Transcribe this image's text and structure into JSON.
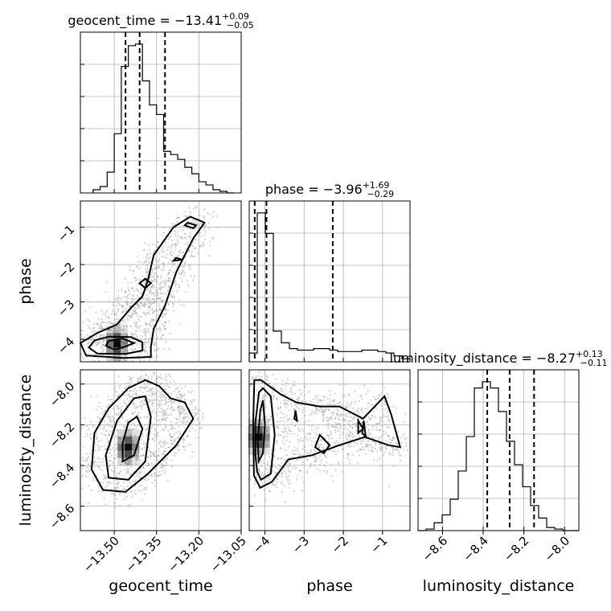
{
  "chart_data": {
    "type": "corner",
    "parameters": [
      "geocent_time",
      "phase",
      "luminosity_distance"
    ],
    "diagonal": [
      {
        "parameter": "geocent_time",
        "title": {
          "prefix": "geocent_time = ",
          "value": "−13.41",
          "plus": "+0.09",
          "minus": "−0.05"
        },
        "range": [
          -13.62,
          -13.05
        ],
        "ticks": [
          -13.5,
          -13.35,
          -13.2,
          -13.05
        ],
        "tick_labels": [
          "−13.50",
          "−13.35",
          "−13.20",
          "−13.05"
        ],
        "quantiles": [
          -13.46,
          -13.41,
          -13.32
        ],
        "bins": {
          "start": -13.575,
          "width": 0.025,
          "counts": [
            0.02,
            0.04,
            0.13,
            0.37,
            0.79,
            0.92,
            0.93,
            0.7,
            0.55,
            0.49,
            0.26,
            0.24,
            0.21,
            0.16,
            0.12,
            0.07,
            0.05,
            0.02,
            0.01,
            0.0
          ]
        }
      },
      {
        "parameter": "phase",
        "title": {
          "prefix": "phase = ",
          "value": "−3.96",
          "plus": "+1.69",
          "minus": "−0.29"
        },
        "range": [
          -4.4,
          -0.3
        ],
        "ticks": [
          -4,
          -3,
          -2,
          -1
        ],
        "tick_labels": [
          "−4",
          "−3",
          "−2",
          "−1"
        ],
        "quantiles": [
          -4.26,
          -3.96,
          -2.27
        ],
        "bins": {
          "start": -4.4,
          "width": 0.205,
          "counts": [
            0.06,
            1.02,
            0.88,
            0.21,
            0.13,
            0.09,
            0.08,
            0.08,
            0.09,
            0.09,
            0.08,
            0.07,
            0.07,
            0.07,
            0.08,
            0.08,
            0.07,
            0.06,
            0.04,
            0.02
          ]
        }
      },
      {
        "parameter": "luminosity_distance",
        "title": {
          "prefix": "luminosity_distance = ",
          "value": "−8.27",
          "plus": "+0.13",
          "minus": "−0.11"
        },
        "range": [
          -8.72,
          -7.93
        ],
        "ticks": [
          -8.6,
          -8.4,
          -8.2,
          -8.0
        ],
        "tick_labels": [
          "−8.6",
          "−8.4",
          "−8.2",
          "−8.0"
        ],
        "quantiles": [
          -8.38,
          -8.27,
          -8.15
        ],
        "bins": {
          "start": -8.72,
          "width": 0.0395,
          "counts": [
            0.0,
            0.01,
            0.05,
            0.1,
            0.2,
            0.38,
            0.6,
            0.91,
            0.95,
            0.91,
            0.76,
            0.57,
            0.42,
            0.28,
            0.16,
            0.08,
            0.02,
            0.01,
            0.0,
            0.0
          ]
        }
      }
    ],
    "pairs": [
      {
        "x": "geocent_time",
        "y": "phase",
        "yrange": [
          -4.6,
          -0.3
        ],
        "yticks": [
          -4,
          -3,
          -2,
          -1
        ],
        "ytick_labels": [
          "−4",
          "−3",
          "−2",
          "−1"
        ],
        "density_peak": [
          -13.49,
          -4.12
        ],
        "contours": [
          [
            [
              -13.5,
              -4.27
            ],
            [
              -13.47,
              -4.22
            ],
            [
              -13.43,
              -4.1
            ],
            [
              -13.47,
              -3.98
            ],
            [
              -13.52,
              -4.04
            ],
            [
              -13.53,
              -4.17
            ]
          ],
          [
            [
              -13.56,
              -4.38
            ],
            [
              -13.46,
              -4.39
            ],
            [
              -13.4,
              -4.3
            ],
            [
              -13.4,
              -4.08
            ],
            [
              -13.44,
              -3.94
            ],
            [
              -13.52,
              -3.93
            ],
            [
              -13.57,
              -4.03
            ],
            [
              -13.59,
              -4.22
            ]
          ],
          [
            [
              -13.6,
              -4.43
            ],
            [
              -13.47,
              -4.5
            ],
            [
              -13.37,
              -4.47
            ],
            [
              -13.37,
              -4.2
            ],
            [
              -13.36,
              -3.72
            ],
            [
              -13.32,
              -3.1
            ],
            [
              -13.28,
              -2.2
            ],
            [
              -13.22,
              -1.3
            ],
            [
              -13.18,
              -0.88
            ],
            [
              -13.23,
              -0.72
            ],
            [
              -13.29,
              -1.0
            ],
            [
              -13.36,
              -1.75
            ],
            [
              -13.38,
              -2.4
            ],
            [
              -13.4,
              -2.85
            ],
            [
              -13.44,
              -3.15
            ],
            [
              -13.49,
              -3.6
            ],
            [
              -13.56,
              -3.83
            ],
            [
              -13.62,
              -4.1
            ]
          ],
          [
            [
              -13.39,
              -2.38
            ],
            [
              -13.37,
              -2.5
            ],
            [
              -13.39,
              -2.63
            ],
            [
              -13.41,
              -2.5
            ]
          ],
          [
            [
              -13.24,
              -0.88
            ],
            [
              -13.21,
              -0.95
            ],
            [
              -13.22,
              -1.03
            ],
            [
              -13.25,
              -0.95
            ]
          ],
          [
            [
              -13.28,
              -1.82
            ],
            [
              -13.26,
              -1.87
            ],
            [
              -13.29,
              -1.9
            ]
          ]
        ]
      },
      {
        "x": "geocent_time",
        "y": "luminosity_distance",
        "yrange": [
          -8.72,
          -7.93
        ],
        "yticks": [
          -8.6,
          -8.4,
          -8.2,
          -8.0
        ],
        "ytick_labels": [
          "−8.6",
          "−8.4",
          "−8.2",
          "−8.0"
        ],
        "density_peak": [
          -13.45,
          -8.31
        ],
        "contours": [
          [
            [
              -13.47,
              -8.38
            ],
            [
              -13.43,
              -8.35
            ],
            [
              -13.4,
              -8.22
            ],
            [
              -13.42,
              -8.16
            ],
            [
              -13.45,
              -8.19
            ],
            [
              -13.47,
              -8.29
            ]
          ],
          [
            [
              -13.52,
              -8.46
            ],
            [
              -13.45,
              -8.47
            ],
            [
              -13.39,
              -8.38
            ],
            [
              -13.37,
              -8.16
            ],
            [
              -13.39,
              -8.06
            ],
            [
              -13.43,
              -8.07
            ],
            [
              -13.49,
              -8.18
            ],
            [
              -13.53,
              -8.35
            ]
          ],
          [
            [
              -13.58,
              -8.42
            ],
            [
              -13.54,
              -8.52
            ],
            [
              -13.46,
              -8.53
            ],
            [
              -13.38,
              -8.44
            ],
            [
              -13.33,
              -8.37
            ],
            [
              -13.28,
              -8.3
            ],
            [
              -13.22,
              -8.17
            ],
            [
              -13.25,
              -8.09
            ],
            [
              -13.3,
              -8.07
            ],
            [
              -13.34,
              -8.01
            ],
            [
              -13.39,
              -7.98
            ],
            [
              -13.45,
              -8.02
            ],
            [
              -13.52,
              -8.12
            ],
            [
              -13.57,
              -8.24
            ]
          ]
        ]
      },
      {
        "x": "phase",
        "y": "luminosity_distance",
        "yrange": [
          -8.72,
          -7.93
        ],
        "yticks": [
          -8.6,
          -8.4,
          -8.2,
          -8.0
        ],
        "ytick_labels": [
          "−8.6",
          "−8.4",
          "−8.2",
          "−8.0"
        ],
        "density_peak": [
          -4.15,
          -8.26
        ],
        "contours": [
          [
            [
              -4.16,
              -8.38
            ],
            [
              -4.05,
              -8.34
            ],
            [
              -4.0,
              -8.2
            ],
            [
              -4.05,
              -8.08
            ],
            [
              -4.12,
              -8.13
            ],
            [
              -4.18,
              -8.28
            ]
          ],
          [
            [
              -4.2,
              -8.43
            ],
            [
              -4.1,
              -8.47
            ],
            [
              -3.85,
              -8.44
            ],
            [
              -3.75,
              -8.25
            ],
            [
              -3.85,
              -8.06
            ],
            [
              -4.05,
              -8.02
            ],
            [
              -4.15,
              -8.04
            ],
            [
              -4.25,
              -8.2
            ],
            [
              -4.24,
              -8.35
            ]
          ],
          [
            [
              -4.28,
              -8.45
            ],
            [
              -4.12,
              -8.51
            ],
            [
              -3.82,
              -8.48
            ],
            [
              -3.4,
              -8.37
            ],
            [
              -2.8,
              -8.35
            ],
            [
              -2.1,
              -8.3
            ],
            [
              -1.45,
              -8.26
            ],
            [
              -0.85,
              -8.3
            ],
            [
              -0.55,
              -8.31
            ],
            [
              -0.78,
              -8.15
            ],
            [
              -0.95,
              -8.06
            ],
            [
              -1.5,
              -8.17
            ],
            [
              -2.1,
              -8.11
            ],
            [
              -2.6,
              -8.11
            ],
            [
              -3.2,
              -8.09
            ],
            [
              -3.6,
              -8.05
            ],
            [
              -4.1,
              -7.98
            ],
            [
              -4.27,
              -7.98
            ],
            [
              -4.3,
              -8.2
            ]
          ],
          [
            [
              -3.22,
              -8.13
            ],
            [
              -3.18,
              -8.18
            ],
            [
              -3.25,
              -8.17
            ]
          ],
          [
            [
              -2.6,
              -8.25
            ],
            [
              -2.35,
              -8.3
            ],
            [
              -2.5,
              -8.34
            ],
            [
              -2.72,
              -8.31
            ]
          ],
          [
            [
              -1.62,
              -8.18
            ],
            [
              -1.5,
              -8.22
            ],
            [
              -1.62,
              -8.24
            ]
          ],
          [
            [
              -1.48,
              -8.18
            ],
            [
              -1.43,
              -8.26
            ],
            [
              -1.52,
              -8.24
            ]
          ]
        ]
      }
    ],
    "axis_labels": {
      "geocent_time": "geocent_time",
      "phase": "phase",
      "luminosity_distance": "luminosity_distance"
    },
    "grid": true,
    "line_color": "#000000",
    "density_color": "#000000",
    "scatter_color": "#999999"
  }
}
